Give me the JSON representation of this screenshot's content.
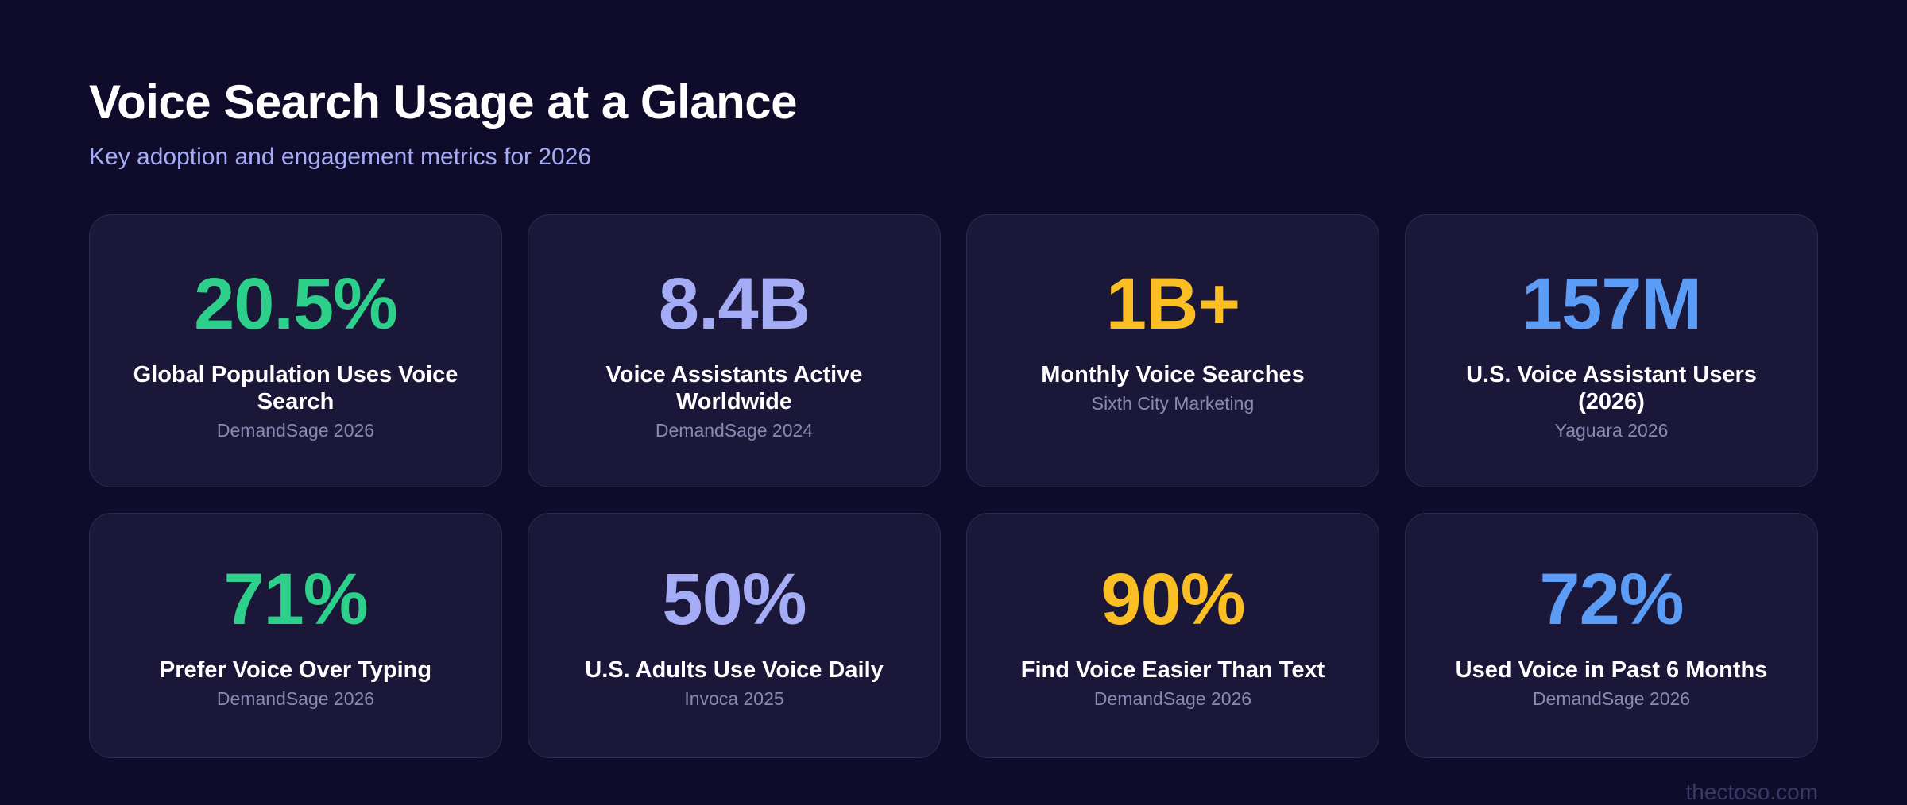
{
  "header": {
    "title": "Voice Search Usage at a Glance",
    "subtitle": "Key adoption and engagement metrics for 2026"
  },
  "cards": [
    {
      "value": "20.5%",
      "label": "Global Population Uses Voice Search",
      "source": "DemandSage 2026",
      "color": "#2dd08a"
    },
    {
      "value": "8.4B",
      "label": "Voice Assistants Active Worldwide",
      "source": "DemandSage 2024",
      "color": "#a5acf6"
    },
    {
      "value": "1B+",
      "label": "Monthly Voice Searches",
      "source": "Sixth City Marketing",
      "color": "#fbbf24"
    },
    {
      "value": "157M",
      "label": "U.S. Voice Assistant Users (2026)",
      "source": "Yaguara 2026",
      "color": "#5b9cf6"
    },
    {
      "value": "71%",
      "label": "Prefer Voice Over Typing",
      "source": "DemandSage 2026",
      "color": "#2dd08a"
    },
    {
      "value": "50%",
      "label": "U.S. Adults Use Voice Daily",
      "source": "Invoca 2025",
      "color": "#a5acf6"
    },
    {
      "value": "90%",
      "label": "Find Voice Easier Than Text",
      "source": "DemandSage 2026",
      "color": "#fbbf24"
    },
    {
      "value": "72%",
      "label": "Used Voice in Past 6 Months",
      "source": "DemandSage 2026",
      "color": "#5b9cf6"
    }
  ],
  "footer": {
    "text": "thectoso.com"
  }
}
